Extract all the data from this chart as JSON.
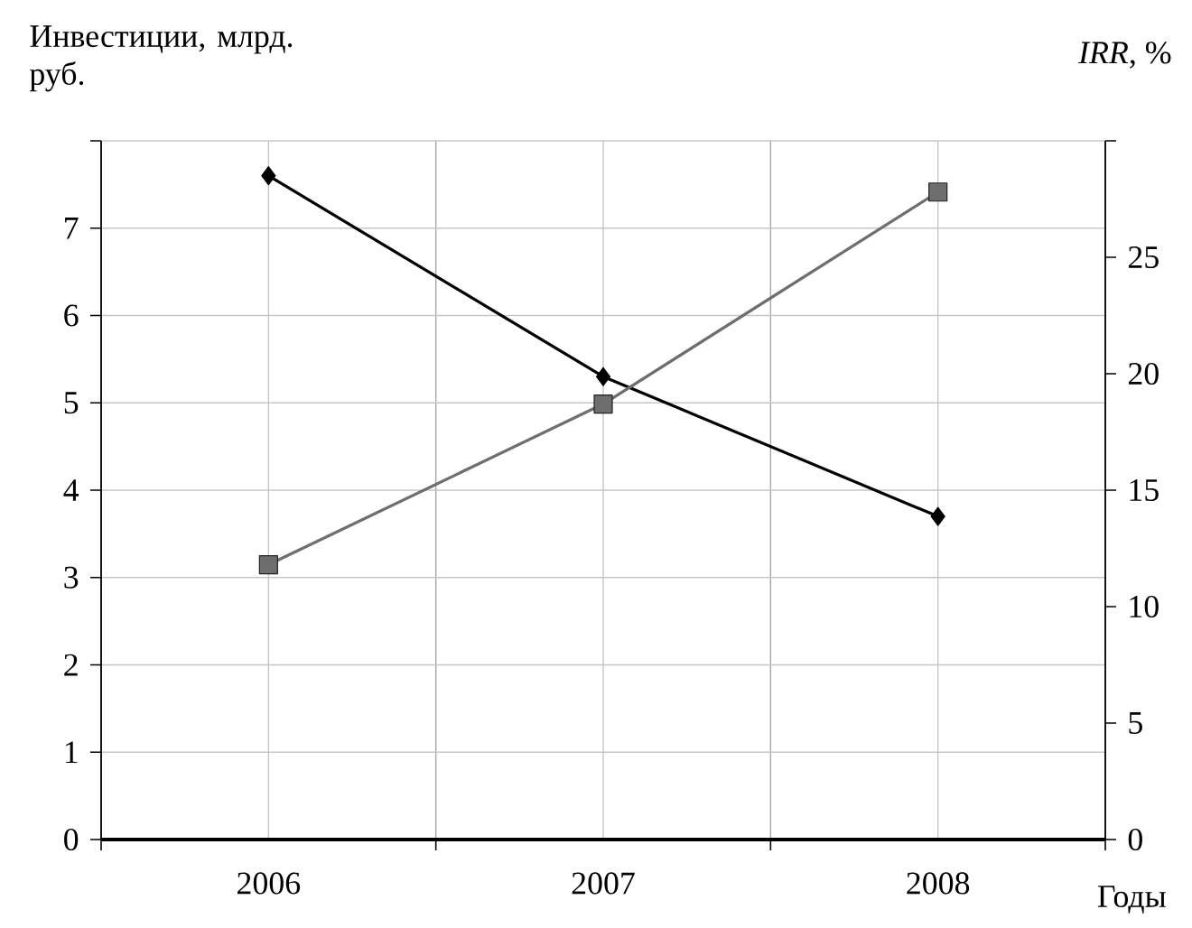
{
  "chart_data": {
    "type": "line",
    "categories": [
      "2006",
      "2007",
      "2008"
    ],
    "xlabel": "Годы",
    "ylabel": "Инвестиции, млрд. руб.",
    "y2label": "*IRR*, %",
    "series": [
      {
        "color": "#000000",
        "marker": "diamond",
        "values": [
          7.6,
          5.3,
          3.7
        ]
      },
      {
        "color": "#6e6e6e",
        "marker": "square",
        "axis": "y2",
        "values": [
          11.8,
          18.7,
          27.8
        ]
      }
    ],
    "ylim": [
      0,
      8
    ],
    "yticks": [
      0,
      1,
      2,
      3,
      4,
      5,
      6,
      7,
      {
        "value": 8,
        "label": null
      }
    ],
    "y2lim": [
      0,
      30
    ],
    "y2ticks": [
      0,
      5,
      10,
      15,
      20,
      25,
      {
        "value": 30,
        "label": null
      }
    ],
    "grid": true,
    "line_style": "solid"
  }
}
